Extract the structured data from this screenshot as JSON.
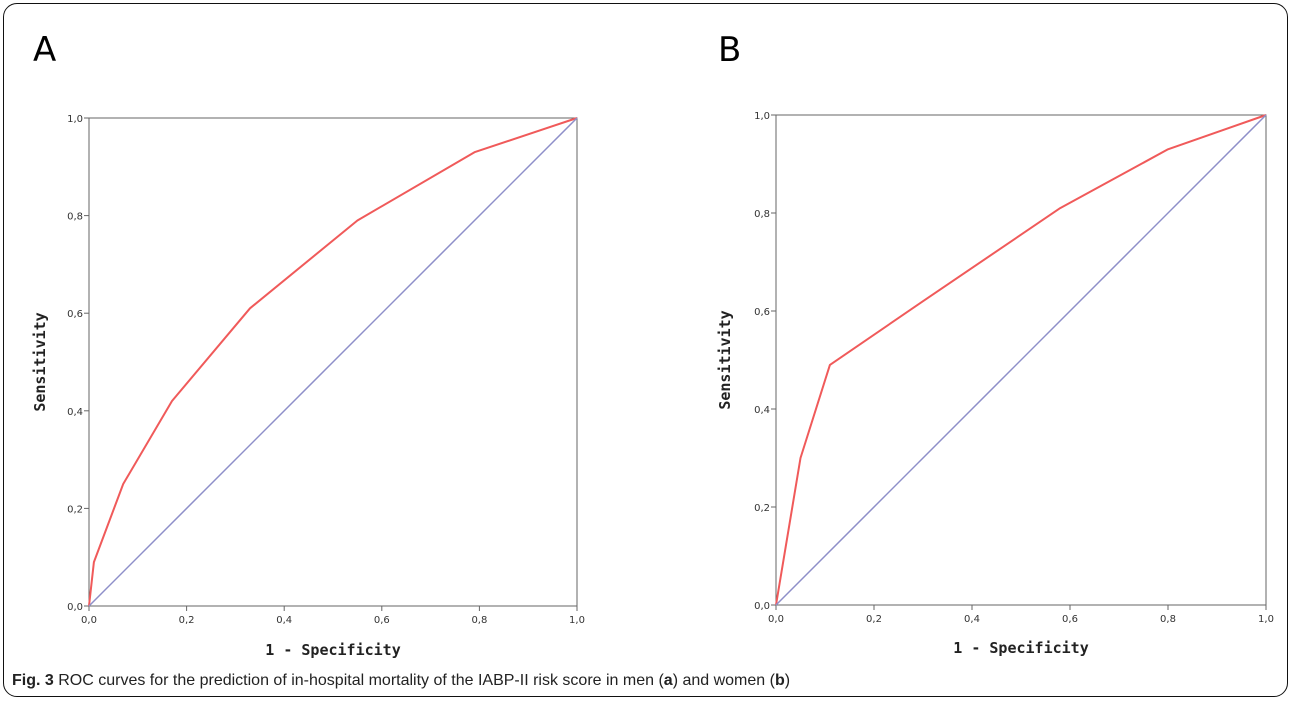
{
  "panels": [
    {
      "letter": "A"
    },
    {
      "letter": "B"
    }
  ],
  "caption": {
    "prefix": "Fig. 3",
    "text_1": " ROC curves for the prediction of in-hospital mortality of the IABP-II risk score in men (",
    "bold_a": "a",
    "text_2": ") and women (",
    "bold_b": "b",
    "text_3": ")"
  },
  "colors": {
    "roc": "#f05a5a",
    "reference": "#8e8fc9",
    "axis": "#666666"
  },
  "chart_data": [
    {
      "type": "line",
      "title": "",
      "xlabel": "1 - Specificity",
      "ylabel": "Sensitivity",
      "xlim": [
        0,
        1
      ],
      "ylim": [
        0,
        1
      ],
      "xticks": [
        "0,0",
        "0,2",
        "0,4",
        "0,6",
        "0,8",
        "1,0"
      ],
      "yticks": [
        "0,0",
        "0,2",
        "0,4",
        "0,6",
        "0,8",
        "1,0"
      ],
      "grid": false,
      "series": [
        {
          "role": "roc",
          "x": [
            0,
            0.01,
            0.07,
            0.17,
            0.33,
            0.55,
            0.79,
            1.0
          ],
          "y": [
            0,
            0.09,
            0.25,
            0.42,
            0.61,
            0.79,
            0.93,
            1.0
          ]
        },
        {
          "role": "reference",
          "x": [
            0,
            1
          ],
          "y": [
            0,
            1
          ]
        }
      ]
    },
    {
      "type": "line",
      "title": "",
      "xlabel": "1 - Specificity",
      "ylabel": "Sensitivity",
      "xlim": [
        0,
        1
      ],
      "ylim": [
        0,
        1
      ],
      "xticks": [
        "0,0",
        "0,2",
        "0,4",
        "0,6",
        "0,8",
        "1,0"
      ],
      "yticks": [
        "0,0",
        "0,2",
        "0,4",
        "0,6",
        "0,8",
        "1,0"
      ],
      "grid": false,
      "series": [
        {
          "role": "roc",
          "x": [
            0,
            0.02,
            0.05,
            0.11,
            0.3,
            0.58,
            0.8,
            1.0
          ],
          "y": [
            0,
            0.12,
            0.3,
            0.49,
            0.62,
            0.81,
            0.93,
            1.0
          ]
        },
        {
          "role": "reference",
          "x": [
            0,
            1
          ],
          "y": [
            0,
            1
          ]
        }
      ]
    }
  ]
}
